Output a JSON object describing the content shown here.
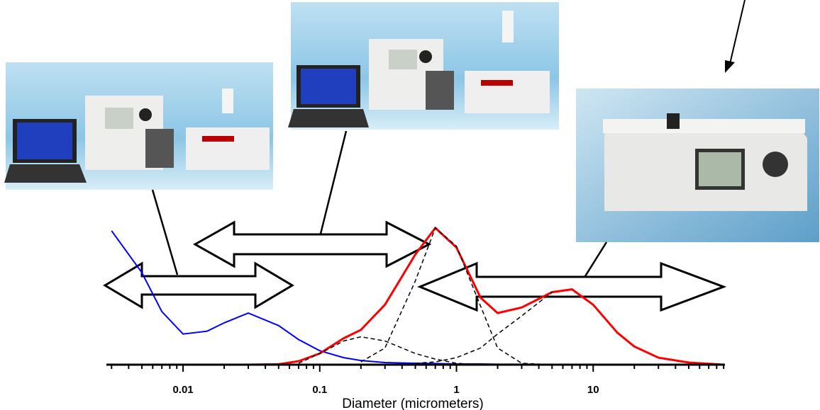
{
  "chart_data": {
    "type": "line",
    "xlabel": "Diameter (micrometers)",
    "xscale": "log",
    "xlim": [
      0.00275,
      92
    ],
    "xticks": [
      0.01,
      0.1,
      1,
      10
    ],
    "xminorticks": [
      0.003,
      0.004,
      0.005,
      0.006,
      0.007,
      0.008,
      0.009,
      0.02,
      0.03,
      0.04,
      0.05,
      0.06,
      0.07,
      0.08,
      0.09,
      0.2,
      0.3,
      0.4,
      0.5,
      0.6,
      0.7,
      0.8,
      0.9,
      2,
      3,
      4,
      5,
      6,
      7,
      8,
      9,
      20,
      30,
      40,
      50,
      60,
      70,
      80,
      90
    ],
    "ylim": [
      0,
      1
    ],
    "x": [
      0.003,
      0.005,
      0.007,
      0.01,
      0.015,
      0.02,
      0.03,
      0.05,
      0.07,
      0.1,
      0.15,
      0.2,
      0.3,
      0.5,
      0.7,
      1,
      1.5,
      2,
      3,
      5,
      7,
      10,
      15,
      20,
      30,
      50,
      90
    ],
    "series": [
      {
        "color": "#0000ff",
        "width": 2,
        "dashed": false,
        "values": [
          0.96,
          0.66,
          0.38,
          0.22,
          0.24,
          0.3,
          0.37,
          0.28,
          0.18,
          0.1,
          0.05,
          0.03,
          0.015,
          0.01,
          0.008,
          0.005,
          0.005,
          0.003,
          0.003,
          0.002,
          0.002,
          0.002,
          0.001,
          0.001,
          0.001,
          0,
          0
        ]
      },
      {
        "color": "#ff0000",
        "width": 3,
        "dashed": false,
        "values": [
          0,
          0,
          0,
          0,
          0,
          0,
          0,
          0.003,
          0.025,
          0.08,
          0.19,
          0.25,
          0.43,
          0.79,
          0.98,
          0.84,
          0.48,
          0.37,
          0.41,
          0.52,
          0.54,
          0.43,
          0.23,
          0.13,
          0.05,
          0.015,
          0
        ]
      },
      {
        "color": "#000000",
        "width": 1.5,
        "dashed": true,
        "values": [
          null,
          null,
          null,
          null,
          null,
          null,
          null,
          null,
          0.01,
          0.08,
          0.17,
          0.2,
          0.17,
          0.08,
          0.04,
          0.01,
          0,
          null,
          null,
          null,
          null,
          null,
          null,
          null,
          null,
          null,
          null
        ]
      },
      {
        "color": "#000000",
        "width": 1.5,
        "dashed": true,
        "values": [
          null,
          null,
          null,
          null,
          null,
          null,
          null,
          null,
          null,
          null,
          null,
          0.02,
          0.12,
          0.6,
          0.98,
          0.85,
          0.42,
          0.12,
          0.01,
          0,
          null,
          null,
          null,
          null,
          null,
          null,
          null
        ]
      },
      {
        "color": "#000000",
        "width": 1.5,
        "dashed": true,
        "values": [
          null,
          null,
          null,
          null,
          null,
          null,
          null,
          null,
          null,
          null,
          null,
          null,
          null,
          0.01,
          0.02,
          0.05,
          0.12,
          0.22,
          0.35,
          0.52,
          null,
          null,
          null,
          null,
          null,
          null,
          null
        ]
      }
    ]
  }
}
